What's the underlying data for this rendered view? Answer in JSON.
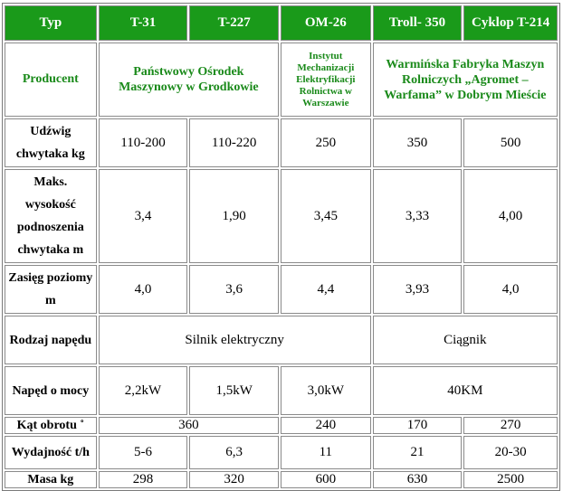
{
  "header": {
    "typ": "Typ",
    "models": [
      "T-31",
      "T-227",
      "OM-26",
      "Troll- 350",
      "Cyklop T-214"
    ]
  },
  "producent": {
    "label": "Producent",
    "pog": "Państwowy Ośrodek Maszynowy w Grodkowie",
    "imer": "Instytut Mechanizacji Elektryfikacji Rolnictwa w Warszawie",
    "warfama": "Warmińska Fabryka Maszyn Rolniczych „Agromet – Warfama” w Dobrym Mieście"
  },
  "rows": {
    "udzwig": {
      "label": "Udźwig chwytaka kg",
      "values": [
        "110-200",
        "110-220",
        "250",
        "350",
        "500"
      ]
    },
    "wysokosc": {
      "label": "Maks. wysokość podnoszenia chwytaka m",
      "values": [
        "3,4",
        "1,90",
        "3,45",
        "3,33",
        "4,00"
      ]
    },
    "zasieg": {
      "label": "Zasięg poziomy m",
      "values": [
        "4,0",
        "3,6",
        "4,4",
        "3,93",
        "4,0"
      ]
    },
    "naped": {
      "label": "Rodzaj napędu",
      "silnik": "Silnik elektryczny",
      "ciagnik": "Ciągnik"
    },
    "moc": {
      "label": "Napęd o mocy",
      "values": [
        "2,2kW",
        "1,5kW",
        "3,0kW",
        "40KM"
      ]
    },
    "kat": {
      "label": "Kąt obrotu ˚",
      "values": [
        "360",
        "240",
        "170",
        "270"
      ]
    },
    "wydajnosc": {
      "label": "Wydajność t/h",
      "values": [
        "5-6",
        "6,3",
        "11",
        "21",
        "20-30"
      ]
    },
    "masa": {
      "label": "Masa kg",
      "values": [
        "298",
        "320",
        "600",
        "630",
        "2500"
      ]
    }
  }
}
